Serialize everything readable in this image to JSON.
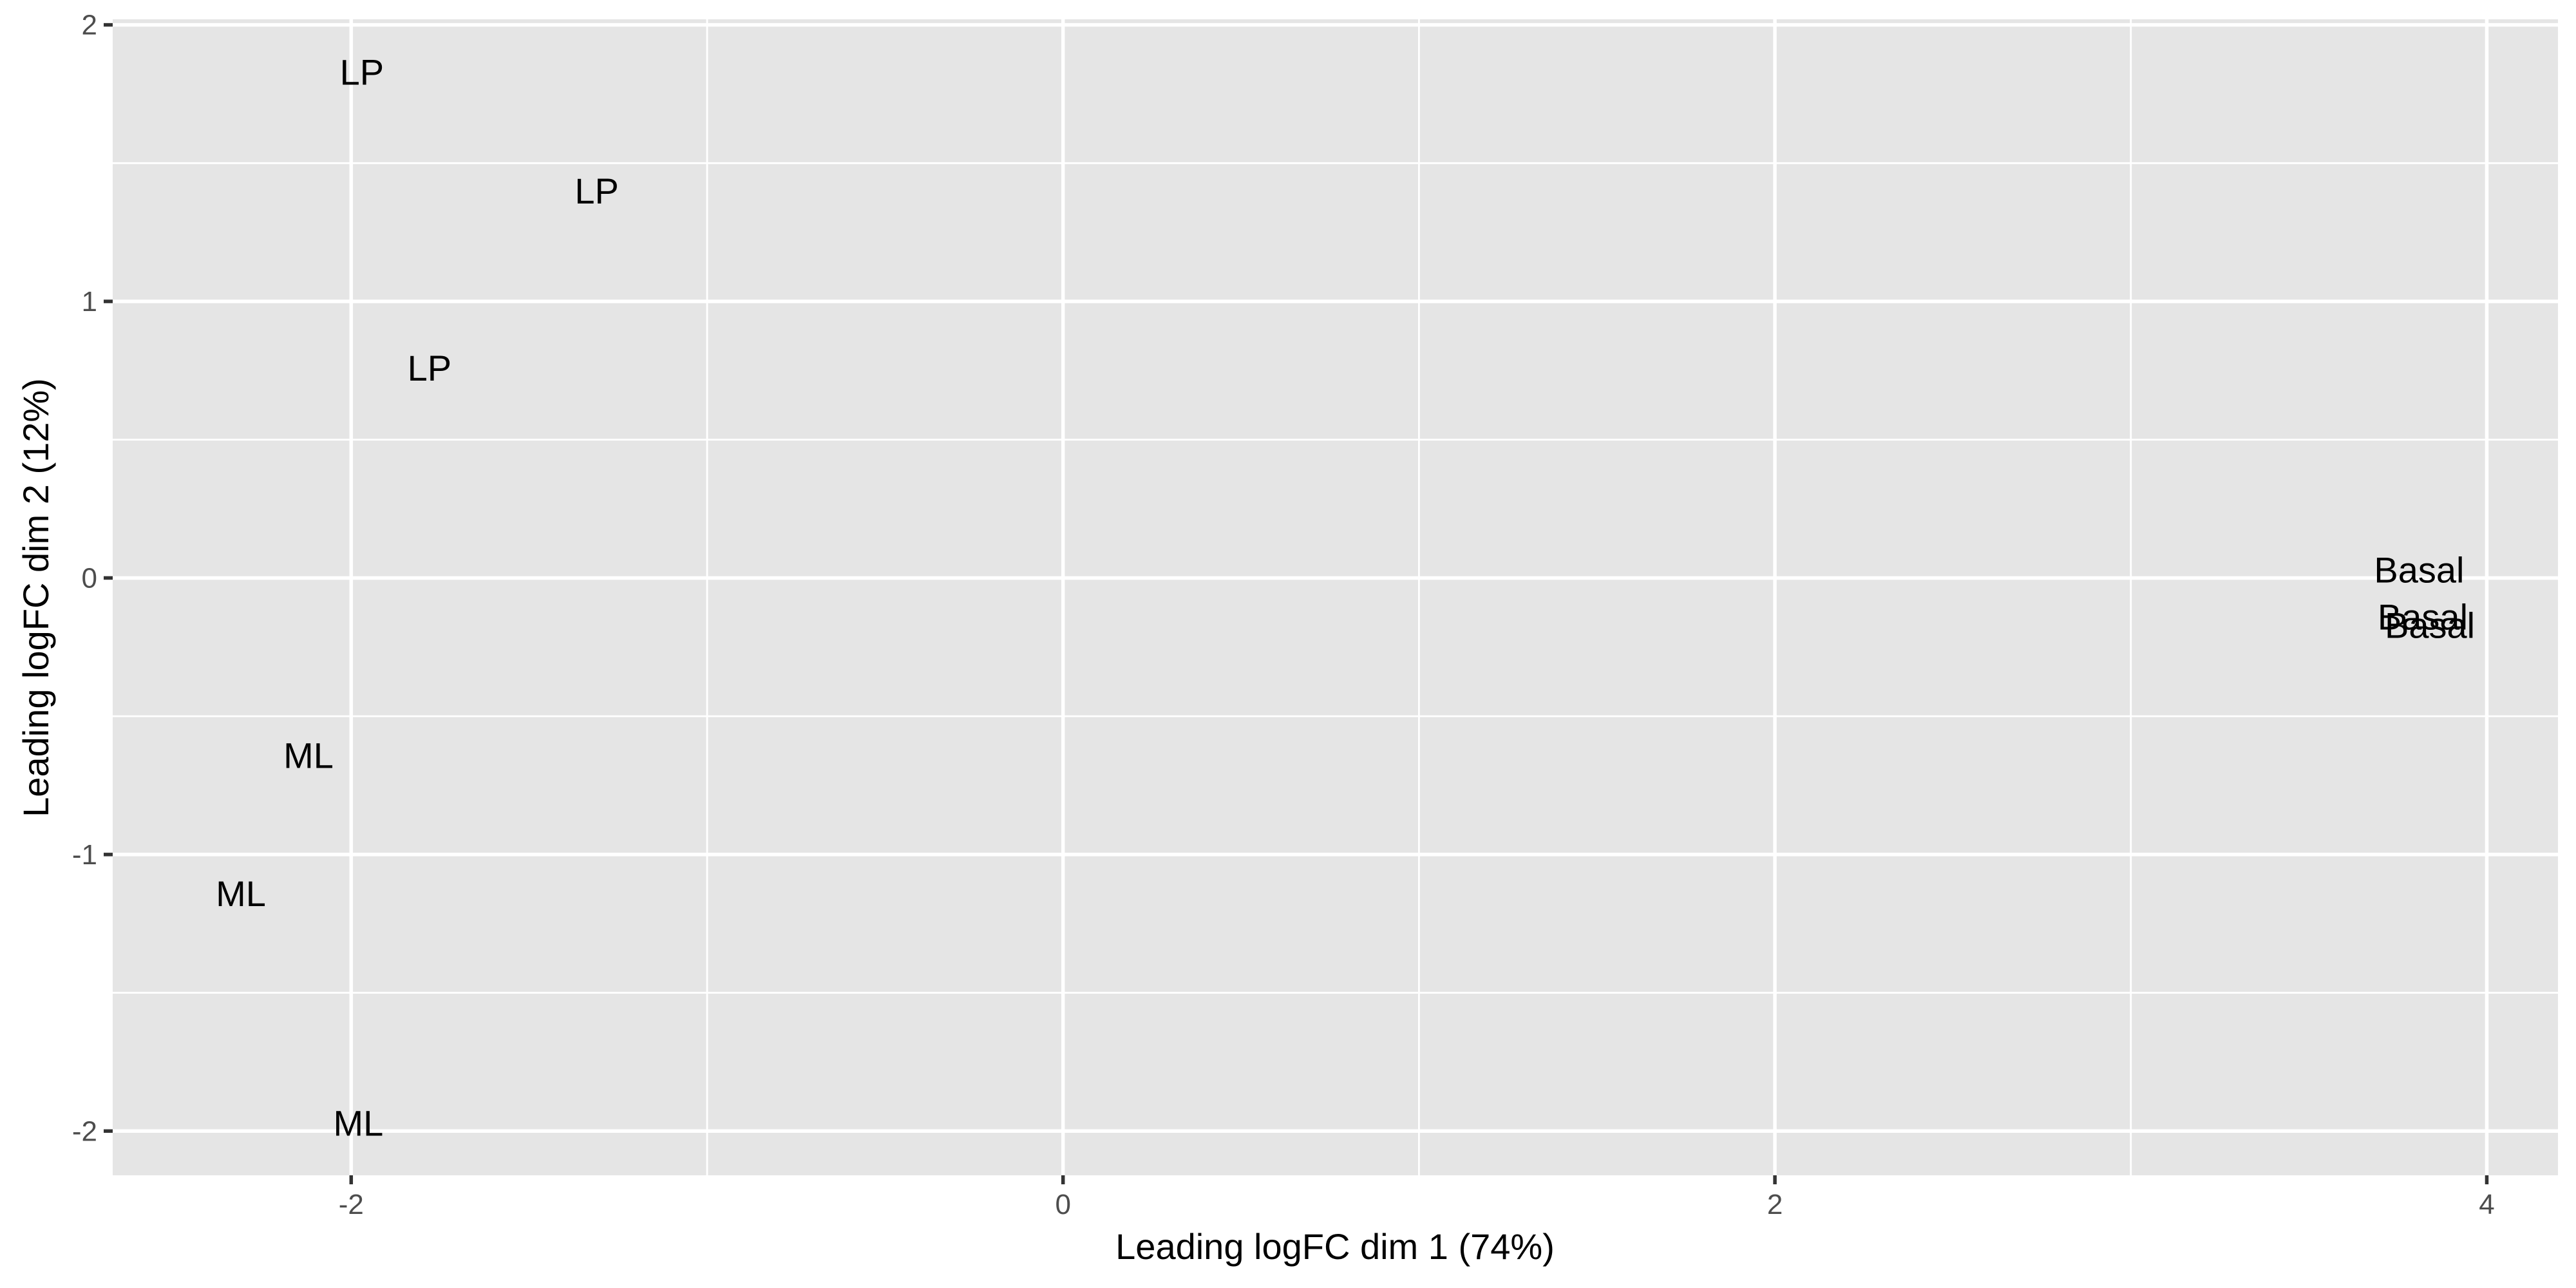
{
  "chart_data": {
    "type": "scatter",
    "xlabel": "Leading logFC dim 1 (74%)",
    "ylabel": "Leading logFC dim 2 (12%)",
    "xlim": [
      -2.67,
      4.2
    ],
    "ylim": [
      -2.16,
      2.02
    ],
    "x_ticks": [
      -2,
      0,
      2,
      4
    ],
    "y_ticks": [
      -2,
      -1,
      0,
      1,
      2
    ],
    "x_tick_labels": [
      "-2",
      "0",
      "2",
      "4"
    ],
    "y_tick_labels": [
      "-2",
      "-1",
      "0",
      "1",
      "2"
    ],
    "grid": true,
    "legend": "none",
    "points": [
      {
        "label": "LP",
        "x": -1.97,
        "y": 1.83
      },
      {
        "label": "LP",
        "x": -1.31,
        "y": 1.4
      },
      {
        "label": "LP",
        "x": -1.78,
        "y": 0.76
      },
      {
        "label": "ML",
        "x": -2.12,
        "y": -0.64
      },
      {
        "label": "ML",
        "x": -2.31,
        "y": -1.14
      },
      {
        "label": "ML",
        "x": -1.98,
        "y": -1.97
      },
      {
        "label": "Basal",
        "x": 3.81,
        "y": 0.03
      },
      {
        "label": "Basal",
        "x": 3.82,
        "y": -0.14
      },
      {
        "label": "Basal",
        "x": 3.84,
        "y": -0.17
      }
    ]
  }
}
